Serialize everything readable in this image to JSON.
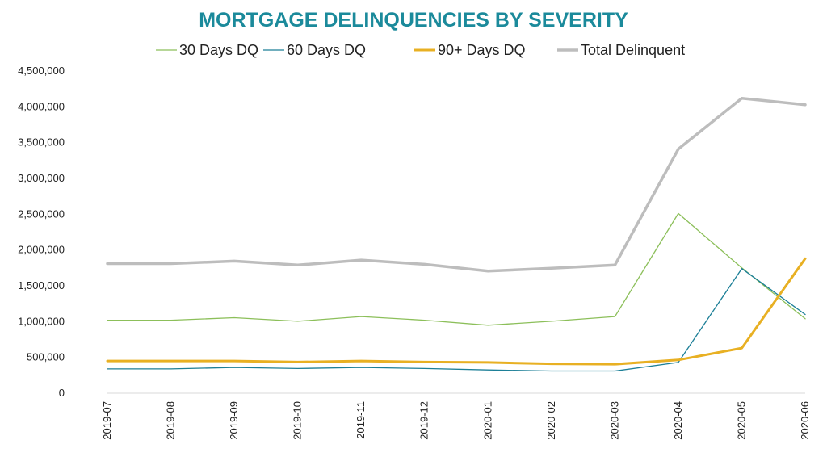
{
  "chart_data": {
    "type": "line",
    "title": "MORTGAGE DELINQUENCIES BY SEVERITY",
    "xlabel": "",
    "ylabel": "",
    "categories": [
      "2019-07",
      "2019-08",
      "2019-09",
      "2019-10",
      "2019-11",
      "2019-12",
      "2020-01",
      "2020-02",
      "2020-03",
      "2020-04",
      "2020-05",
      "2020-06"
    ],
    "y_ticks": [
      "0",
      "500,000",
      "1,000,000",
      "1,500,000",
      "2,000,000",
      "2,500,000",
      "3,000,000",
      "3,500,000",
      "4,000,000",
      "4,500,000"
    ],
    "ylim": [
      0,
      4500000
    ],
    "grid": false,
    "legend_position": "top",
    "series": [
      {
        "name": "30 Days DQ",
        "color": "#8cbf5a",
        "values": [
          1020000,
          1020000,
          1055000,
          1005000,
          1070000,
          1020000,
          950000,
          1005000,
          1070000,
          2510000,
          1750000,
          1040000
        ]
      },
      {
        "name": "60 Days DQ",
        "color": "#1c7f97",
        "values": [
          340000,
          340000,
          360000,
          345000,
          360000,
          345000,
          325000,
          310000,
          310000,
          430000,
          1740000,
          1100000
        ]
      },
      {
        "name": "90+ Days DQ",
        "color": "#e8b023",
        "values": [
          450000,
          450000,
          450000,
          435000,
          450000,
          435000,
          430000,
          410000,
          405000,
          465000,
          630000,
          1880000
        ]
      },
      {
        "name": "Total Delinquent",
        "color": "#bdbdbd",
        "values": [
          1810000,
          1810000,
          1845000,
          1790000,
          1860000,
          1800000,
          1705000,
          1745000,
          1790000,
          3410000,
          4120000,
          4030000
        ]
      }
    ]
  }
}
